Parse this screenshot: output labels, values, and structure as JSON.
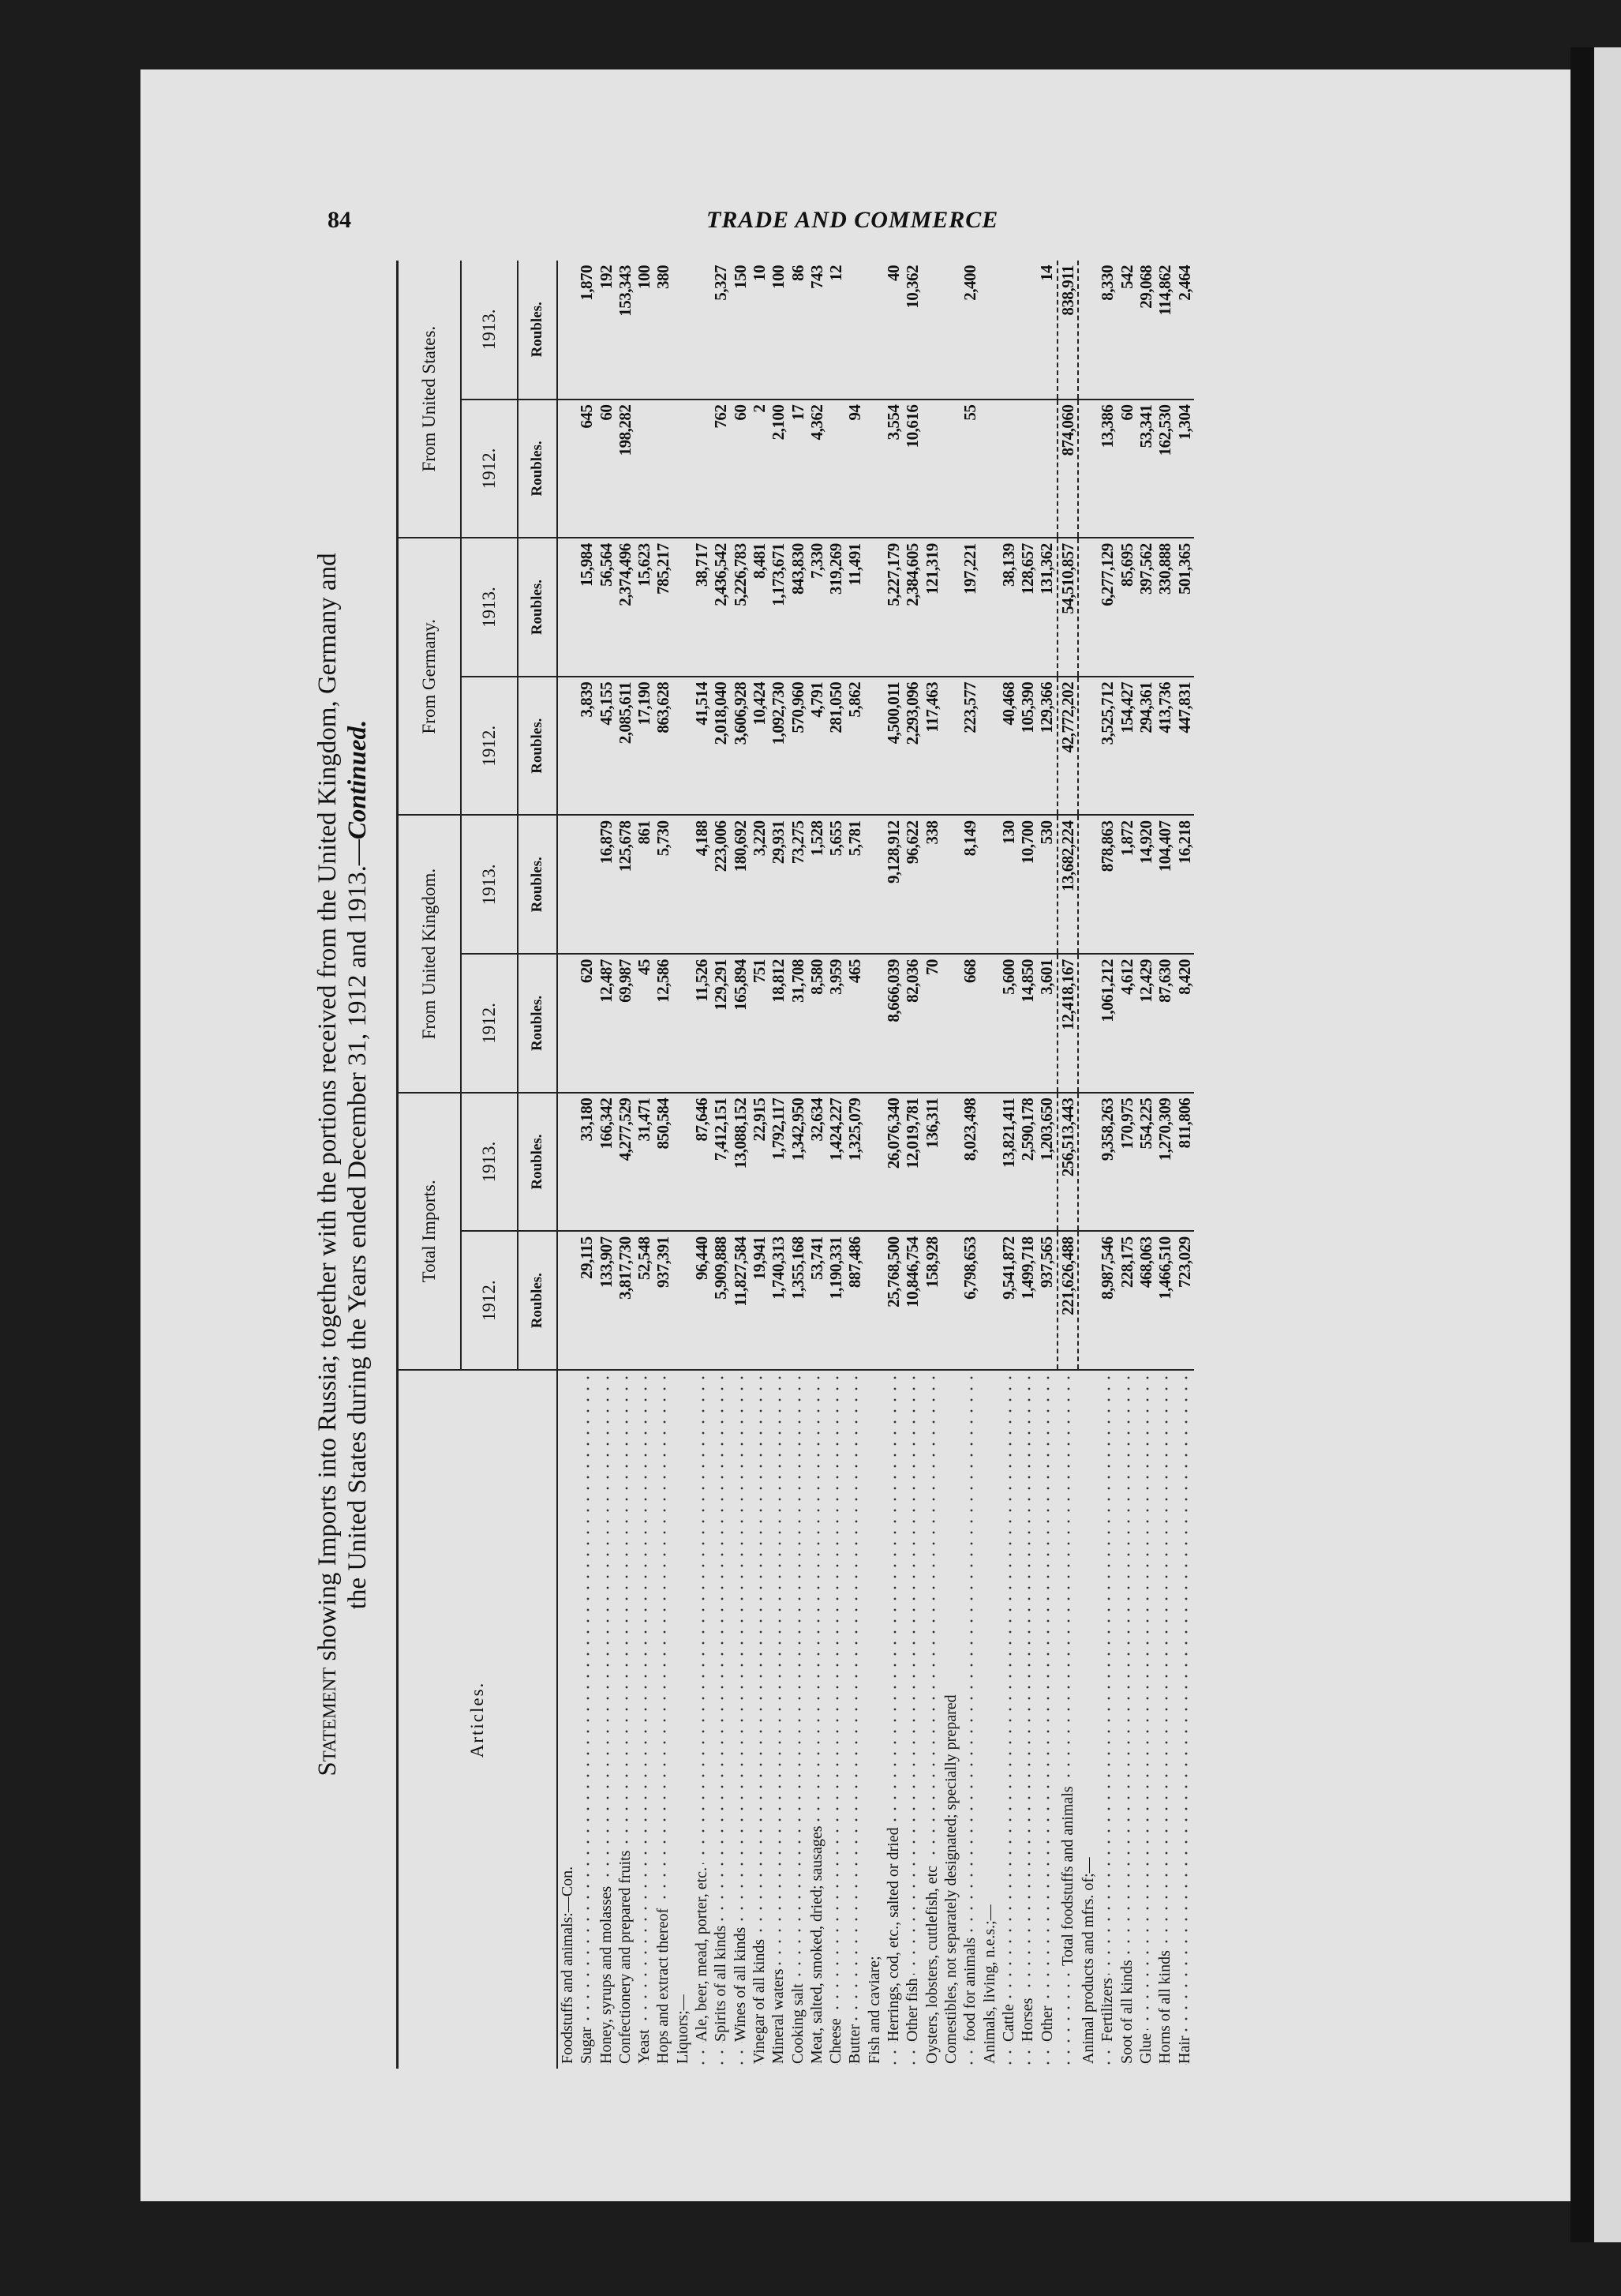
{
  "running_header": {
    "page_number": "84",
    "title": "TRADE AND COMMERCE"
  },
  "statement": {
    "lead": "Statement",
    "line1": "showing Imports into Russia; together with the portions received from the United Kingdom, Germany and",
    "line2a": "the United States during the Years ended December 31, 1912 and 1913.—",
    "line2b": "Continued."
  },
  "columns": {
    "articles": "Articles.",
    "groups": [
      "Total Imports.",
      "From United Kingdom.",
      "From Germany.",
      "From United States."
    ],
    "years": [
      "1912.",
      "1913.",
      "1912.",
      "1913.",
      "1912.",
      "1913.",
      "1912.",
      "1913."
    ],
    "unit": "Roubles."
  },
  "rows": [
    {
      "label": "Foodstuffs and animals:—Con.",
      "indent": 0,
      "values": null
    },
    {
      "label": "Sugar",
      "indent": 0,
      "values": [
        "29,115",
        "33,180",
        "620",
        "",
        "3,839",
        "15,984",
        "645",
        "1,870"
      ]
    },
    {
      "label": "Honey, syrups and molasses",
      "indent": 0,
      "values": [
        "133,907",
        "166,342",
        "12,487",
        "16,879",
        "45,155",
        "56,564",
        "60",
        "192"
      ]
    },
    {
      "label": "Confectionery and prepared fruits",
      "indent": 0,
      "values": [
        "3,817,730",
        "4,277,529",
        "69,987",
        "125,678",
        "2,085,611",
        "2,374,496",
        "198,282",
        "153,343"
      ]
    },
    {
      "label": "Yeast",
      "indent": 0,
      "values": [
        "52,548",
        "31,471",
        "45",
        "861",
        "17,190",
        "15,623",
        "",
        "100"
      ]
    },
    {
      "label": "Hops and extract thereof",
      "indent": 0,
      "values": [
        "937,391",
        "850,584",
        "12,586",
        "5,730",
        "863,628",
        "785,217",
        "",
        "380"
      ]
    },
    {
      "label": "Liquors;—",
      "indent": 0,
      "values": null
    },
    {
      "label": "Ale, beer, mead, porter, etc.",
      "indent": 1,
      "values": [
        "96,440",
        "87,646",
        "11,526",
        "4,188",
        "41,514",
        "38,717",
        "",
        ""
      ]
    },
    {
      "label": "Spirits of all kinds",
      "indent": 1,
      "values": [
        "5,909,888",
        "7,412,151",
        "129,291",
        "223,006",
        "2,018,040",
        "2,436,542",
        "762",
        "5,327"
      ]
    },
    {
      "label": "Wines of all kinds",
      "indent": 1,
      "values": [
        "11,827,584",
        "13,088,152",
        "165,894",
        "180,692",
        "3,606,928",
        "5,226,783",
        "60",
        "150"
      ]
    },
    {
      "label": "Vinegar of all kinds",
      "indent": 0,
      "values": [
        "19,941",
        "22,915",
        "751",
        "3,220",
        "10,424",
        "8,481",
        "2",
        "10"
      ]
    },
    {
      "label": "Mineral waters",
      "indent": 0,
      "values": [
        "1,740,313",
        "1,792,117",
        "18,812",
        "29,931",
        "1,092,730",
        "1,173,671",
        "2,100",
        "100"
      ]
    },
    {
      "label": "Cooking salt",
      "indent": 0,
      "values": [
        "1,355,168",
        "1,342,950",
        "31,708",
        "73,275",
        "570,960",
        "843,830",
        "17",
        "86"
      ]
    },
    {
      "label": "Meat, salted, smoked, dried; sausages",
      "indent": 0,
      "values": [
        "53,741",
        "32,634",
        "8,580",
        "1,528",
        "4,791",
        "7,330",
        "4,362",
        "743"
      ]
    },
    {
      "label": "Cheese",
      "indent": 0,
      "values": [
        "1,190,331",
        "1,424,227",
        "3,959",
        "5,655",
        "281,050",
        "319,269",
        "",
        "12"
      ]
    },
    {
      "label": "Butter",
      "indent": 0,
      "values": [
        "887,486",
        "1,325,079",
        "465",
        "5,781",
        "5,862",
        "11,491",
        "94",
        ""
      ]
    },
    {
      "label": "Fish and caviare;",
      "indent": 0,
      "values": null
    },
    {
      "label": "Herrings, cod, etc., salted or dried",
      "indent": 1,
      "values": [
        "25,768,500",
        "26,076,340",
        "8,666,039",
        "9,128,912",
        "4,500,011",
        "5,227,179",
        "3,554",
        "40"
      ]
    },
    {
      "label": "Other fish",
      "indent": 1,
      "values": [
        "10,846,754",
        "12,019,781",
        "82,036",
        "96,622",
        "2,293,096",
        "2,384,605",
        "10,616",
        "10,362"
      ]
    },
    {
      "label": "Oysters, lobsters, cuttlefish, etc",
      "indent": 0,
      "values": [
        "158,928",
        "136,311",
        "70",
        "338",
        "117,463",
        "121,319",
        "",
        ""
      ]
    },
    {
      "label": "Comestibles, not separately designated; specially prepared",
      "indent": 0,
      "values": null
    },
    {
      "label": "food for animals",
      "indent": 1,
      "values": [
        "6,798,653",
        "8,023,498",
        "668",
        "8,149",
        "223,577",
        "197,221",
        "55",
        "2,400"
      ]
    },
    {
      "label": "Animals, living, n.e.s.;—",
      "indent": 0,
      "values": null
    },
    {
      "label": "Cattle",
      "indent": 1,
      "values": [
        "9,541,872",
        "13,821,411",
        "5,600",
        "130",
        "40,468",
        "38,139",
        "",
        ""
      ]
    },
    {
      "label": "Horses",
      "indent": 1,
      "values": [
        "1,499,718",
        "2,590,178",
        "14,850",
        "10,700",
        "105,390",
        "128,657",
        "",
        ""
      ]
    },
    {
      "label": "Other",
      "indent": 1,
      "values": [
        "937,565",
        "1,203,650",
        "3,601",
        "530",
        "129,366",
        "131,362",
        "",
        "14"
      ]
    },
    {
      "label": "Total foodstuffs and animals",
      "indent": 3,
      "values": [
        "221,626,488",
        "256,513,443",
        "12,418,167",
        "13,682,224",
        "42,772,202",
        "54,510,857",
        "874,060",
        "838,911"
      ],
      "total": true
    },
    {
      "label": "Animal products and mfrs. of;—",
      "indent": 0,
      "values": null
    },
    {
      "label": "Fertilizers",
      "indent": 1,
      "values": [
        "8,987,546",
        "9,358,263",
        "1,061,212",
        "878,863",
        "3,525,712",
        "6,277,129",
        "13,386",
        "8,330"
      ]
    },
    {
      "label": "Soot of all kinds",
      "indent": 0,
      "values": [
        "228,175",
        "170,975",
        "4,612",
        "1,872",
        "154,427",
        "85,695",
        "60",
        "542"
      ]
    },
    {
      "label": "Glue",
      "indent": 0,
      "values": [
        "468,063",
        "554,225",
        "12,429",
        "14,920",
        "294,361",
        "397,562",
        "53,341",
        "29,068"
      ]
    },
    {
      "label": "Horns of all kinds",
      "indent": 0,
      "values": [
        "1,466,510",
        "1,270,309",
        "87,630",
        "104,407",
        "413,736",
        "330,888",
        "162,530",
        "114,862"
      ]
    },
    {
      "label": "Hair",
      "indent": 0,
      "values": [
        "723,029",
        "811,806",
        "8,420",
        "16,218",
        "447,831",
        "501,365",
        "1,304",
        "2,464"
      ]
    }
  ]
}
